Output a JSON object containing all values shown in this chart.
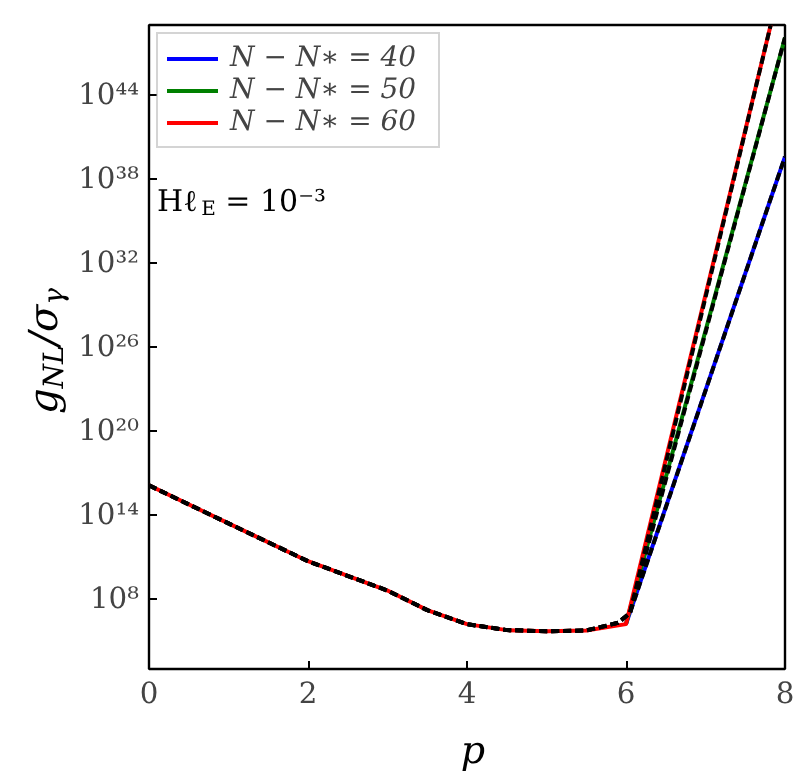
{
  "chart_data": {
    "type": "line",
    "xlabel": "p",
    "ylabel": "g$_{NL}$/σ$_{γ}$",
    "log": "y",
    "grid": false,
    "legend": "top left",
    "xlim": [
      0,
      8
    ],
    "xticks": [
      0,
      2,
      4,
      6,
      8
    ],
    "ylim": [
      1000.0,
      1e+49
    ],
    "yticks": [
      {
        "value": 100000000.0,
        "label": "10⁸"
      },
      {
        "value": 100000000000000.0,
        "label": "10¹⁴"
      },
      {
        "value": 1e+20,
        "label": "10²⁰"
      },
      {
        "value": 1e+26,
        "label": "10²⁶"
      },
      {
        "value": 1e+32,
        "label": "10³²"
      },
      {
        "value": 1e+38,
        "label": "10³⁸"
      },
      {
        "value": 1e+44,
        "label": "10⁴⁴"
      }
    ],
    "annotations": [
      "Hℓ$_{E}$ = 10⁻³"
    ],
    "series": [
      {
        "name": "N − N∗ = 40",
        "color": "#0000ff",
        "x": [
          6,
          8
        ],
        "values": [
          1600000.0,
          4e+39
        ]
      },
      {
        "name": "N − N∗ = 50",
        "color": "#008000",
        "x": [
          6,
          8
        ],
        "values": [
          1600000.0,
          1.3e+48
        ]
      },
      {
        "name": "N − N∗ = 60",
        "color": "#ff0000",
        "x": [
          0,
          1,
          2,
          3,
          3.5,
          4,
          4.5,
          5,
          5.5,
          6,
          7.82
        ],
        "values": [
          1.3e+16,
          25000000000000.0,
          50000000000.0,
          400000000.0,
          16000000.0,
          1600000.0,
          600000.0,
          500000.0,
          560000.0,
          1600000.0,
          1e+49
        ]
      },
      {
        "color": "#000000",
        "line_style": "dashed",
        "x": [
          0,
          1,
          2,
          3,
          3.5,
          4,
          4.5,
          5,
          5.5,
          5.9,
          6.05,
          8
        ],
        "values": [
          1.3e+16,
          25000000000000.0,
          50000000000.0,
          400000000.0,
          16000000.0,
          1600000.0,
          600000.0,
          500000.0,
          560000.0,
          2000000.0,
          10000000.0,
          4e+39
        ]
      },
      {
        "color": "#000000",
        "line_style": "dashed",
        "x": [
          0,
          1,
          2,
          3,
          3.5,
          4,
          4.5,
          5,
          5.5,
          5.9,
          6.05,
          8
        ],
        "values": [
          1.3e+16,
          25000000000000.0,
          50000000000.0,
          400000000.0,
          16000000.0,
          1600000.0,
          600000.0,
          500000.0,
          560000.0,
          2000000.0,
          10000000.0,
          1.3e+48
        ]
      },
      {
        "color": "#000000",
        "line_style": "dashed",
        "x": [
          0,
          1,
          2,
          3,
          3.5,
          4,
          4.5,
          5,
          5.5,
          5.9,
          6.05,
          7.82
        ],
        "values": [
          1.3e+16,
          25000000000000.0,
          50000000000.0,
          400000000.0,
          16000000.0,
          1600000.0,
          600000.0,
          500000.0,
          560000.0,
          2000000.0,
          10000000.0,
          1e+49
        ]
      }
    ]
  }
}
